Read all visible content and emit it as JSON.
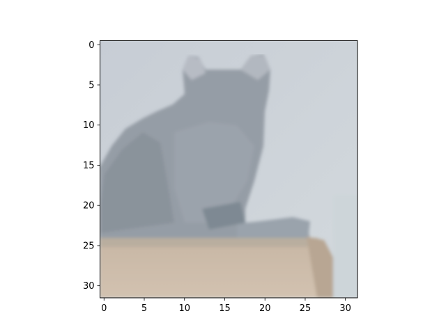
{
  "image": {
    "subject": "grey cat sitting on a beige ledge",
    "colors": {
      "background_top": "#c9ced6",
      "background_right": "#cfd6da",
      "cat_body": "#959da6",
      "cat_shadow": "#8a939b",
      "cat_ear_light": "#b7bcc4",
      "ledge": "#cdbcaa",
      "ledge_edge": "#b8a693",
      "ledge_top_line": "#b9ae9f"
    }
  },
  "axes": {
    "x_ticks": [
      {
        "value": 0,
        "label": "0"
      },
      {
        "value": 5,
        "label": "5"
      },
      {
        "value": 10,
        "label": "10"
      },
      {
        "value": 15,
        "label": "15"
      },
      {
        "value": 20,
        "label": "20"
      },
      {
        "value": 25,
        "label": "25"
      },
      {
        "value": 30,
        "label": "30"
      }
    ],
    "y_ticks": [
      {
        "value": 0,
        "label": "0"
      },
      {
        "value": 5,
        "label": "5"
      },
      {
        "value": 10,
        "label": "10"
      },
      {
        "value": 15,
        "label": "15"
      },
      {
        "value": 20,
        "label": "20"
      },
      {
        "value": 25,
        "label": "25"
      },
      {
        "value": 30,
        "label": "30"
      }
    ],
    "xlim": [
      -0.5,
      31.5
    ],
    "ylim": [
      31.5,
      -0.5
    ]
  }
}
